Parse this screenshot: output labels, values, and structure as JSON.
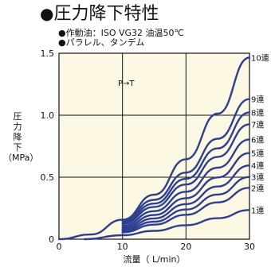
{
  "heading": {
    "bullet": "●",
    "title": "圧力降下特性"
  },
  "notes": [
    "●作動油：ISO VG32 油温50℃",
    "●パラレル、タンデム"
  ],
  "colors": {
    "background": "#fdf8e4",
    "grid": "#111111",
    "curve": "#2c3f91"
  },
  "chart_data": {
    "type": "line",
    "ylabel": "圧力降下",
    "ylabel_unit": "（MPa）",
    "xlabel": "流量（ L/min）",
    "xlim": [
      0,
      30
    ],
    "ylim": [
      0,
      1.5
    ],
    "x_ticks": [
      "0",
      "10",
      "20",
      "30"
    ],
    "y_ticks": [
      "0",
      "0.5",
      "1.0",
      "1.5"
    ],
    "annotation": "P→T",
    "series": [
      {
        "name": "1連",
        "x": [
          4,
          10,
          15,
          20,
          25,
          30
        ],
        "y": [
          0.0,
          0.032,
          0.067,
          0.113,
          0.169,
          0.235
        ]
      },
      {
        "name": "2連",
        "x": [
          10,
          15,
          20,
          25,
          30
        ],
        "y": [
          0.056,
          0.117,
          0.197,
          0.297,
          0.415
        ]
      },
      {
        "name": "3連",
        "x": [
          10,
          15,
          20,
          25,
          30
        ],
        "y": [
          0.067,
          0.141,
          0.239,
          0.36,
          0.502
        ]
      },
      {
        "name": "4連",
        "x": [
          10,
          15,
          20,
          25,
          30
        ],
        "y": [
          0.079,
          0.167,
          0.283,
          0.425,
          0.595
        ]
      },
      {
        "name": "5連",
        "x": [
          10,
          15,
          20,
          25,
          30
        ],
        "y": [
          0.092,
          0.195,
          0.331,
          0.498,
          0.695
        ]
      },
      {
        "name": "6連",
        "x": [
          10,
          15,
          20,
          25,
          30
        ],
        "y": [
          0.107,
          0.226,
          0.383,
          0.577,
          0.805
        ]
      },
      {
        "name": "7連",
        "x": [
          10,
          15,
          20,
          25,
          30
        ],
        "y": [
          0.123,
          0.26,
          0.441,
          0.664,
          0.927
        ]
      },
      {
        "name": "8連",
        "x": [
          10,
          15,
          20,
          25,
          30
        ],
        "y": [
          0.136,
          0.287,
          0.487,
          0.733,
          1.023
        ]
      },
      {
        "name": "9連",
        "x": [
          10,
          15,
          20,
          25,
          30
        ],
        "y": [
          0.15,
          0.317,
          0.537,
          0.81,
          1.13
        ]
      },
      {
        "name": "10連",
        "x": [
          0,
          5,
          10,
          15,
          20,
          25,
          30
        ],
        "y": [
          0.0,
          0.038,
          0.157,
          0.359,
          0.645,
          1.013,
          1.465
        ]
      }
    ]
  }
}
